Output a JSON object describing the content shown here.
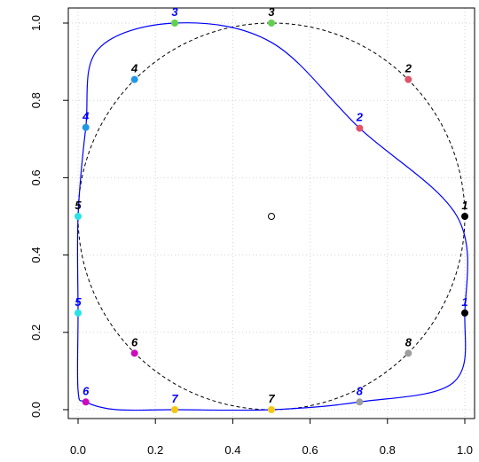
{
  "chart_data": {
    "type": "scatter",
    "title": "",
    "xlabel": "",
    "ylabel": "",
    "xlim": [
      0,
      1
    ],
    "ylim": [
      0,
      1
    ],
    "x_ticks": [
      "0.0",
      "0.2",
      "0.4",
      "0.6",
      "0.8",
      "1.0"
    ],
    "y_ticks": [
      "0.0",
      "0.2",
      "0.4",
      "0.6",
      "0.8",
      "1.0"
    ],
    "grid": true,
    "center_point": {
      "x": 0.5,
      "y": 0.5
    },
    "circle": {
      "cx": 0.5,
      "cy": 0.5,
      "r": 0.5,
      "line_style": "dashed",
      "color": "#000000"
    },
    "blue_curve": {
      "color": "#0000ff"
    },
    "series": [
      {
        "label_color": "#000000",
        "points": [
          {
            "label": "1",
            "x": 1.0,
            "y": 0.5,
            "color": "#000000"
          },
          {
            "label": "2",
            "x": 0.854,
            "y": 0.854,
            "color": "#df536b"
          },
          {
            "label": "3",
            "x": 0.5,
            "y": 1.0,
            "color": "#61d04f"
          },
          {
            "label": "4",
            "x": 0.146,
            "y": 0.854,
            "color": "#2297e6"
          },
          {
            "label": "5",
            "x": 0.0,
            "y": 0.5,
            "color": "#28e2e5"
          },
          {
            "label": "6",
            "x": 0.146,
            "y": 0.146,
            "color": "#cd0bbc"
          },
          {
            "label": "7",
            "x": 0.5,
            "y": 0.0,
            "color": "#f5c710"
          },
          {
            "label": "8",
            "x": 0.854,
            "y": 0.146,
            "color": "#9e9e9e"
          }
        ]
      },
      {
        "label_color": "#0000ff",
        "points": [
          {
            "label": "1",
            "x": 1.0,
            "y": 0.25,
            "color": "#000000"
          },
          {
            "label": "2",
            "x": 0.728,
            "y": 0.728,
            "color": "#df536b"
          },
          {
            "label": "3",
            "x": 0.25,
            "y": 1.0,
            "color": "#61d04f"
          },
          {
            "label": "4",
            "x": 0.02,
            "y": 0.73,
            "color": "#2297e6"
          },
          {
            "label": "5",
            "x": 0.0,
            "y": 0.25,
            "color": "#28e2e5"
          },
          {
            "label": "6",
            "x": 0.02,
            "y": 0.02,
            "color": "#cd0bbc"
          },
          {
            "label": "7",
            "x": 0.25,
            "y": 0.0,
            "color": "#f5c710"
          },
          {
            "label": "8",
            "x": 0.728,
            "y": 0.02,
            "color": "#9e9e9e"
          }
        ]
      }
    ]
  }
}
